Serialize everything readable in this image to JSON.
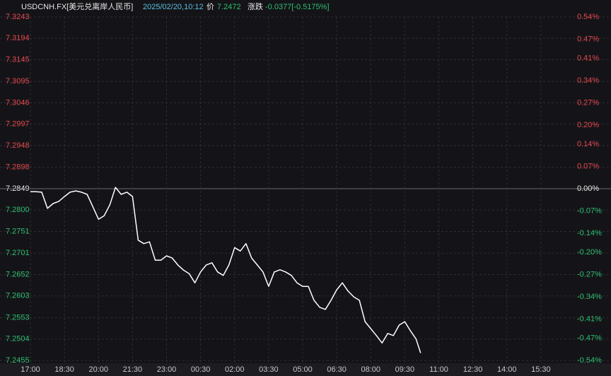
{
  "chart_data": {
    "type": "line",
    "title": "USDCNH.FX[美元兑离岸人民币]",
    "header": {
      "datetime": "2025/02/20,10:12",
      "price_label": "价",
      "price": "7.2472",
      "change_label": "涨跌",
      "change": "-0.0377[-0.5175%]"
    },
    "x": [
      "17:00",
      "17:15",
      "17:30",
      "17:45",
      "18:00",
      "18:15",
      "18:30",
      "18:45",
      "19:00",
      "19:15",
      "19:30",
      "19:45",
      "20:00",
      "20:15",
      "20:30",
      "20:45",
      "21:00",
      "21:15",
      "21:30",
      "21:45",
      "22:00",
      "22:15",
      "22:30",
      "22:45",
      "23:00",
      "23:15",
      "23:30",
      "23:45",
      "00:00",
      "00:15",
      "00:30",
      "00:45",
      "01:00",
      "01:15",
      "01:30",
      "01:45",
      "02:00",
      "02:15",
      "02:30",
      "02:45",
      "03:00",
      "03:15",
      "03:30",
      "03:45",
      "04:00",
      "04:15",
      "04:30",
      "04:45",
      "05:00",
      "05:15",
      "05:30",
      "05:45",
      "06:00",
      "06:15",
      "06:30",
      "06:45",
      "07:00",
      "07:15",
      "07:30",
      "07:45",
      "08:00",
      "08:15",
      "08:30",
      "08:45",
      "09:00",
      "09:15",
      "09:30",
      "09:45",
      "10:00",
      "10:12"
    ],
    "values": [
      7.2842,
      7.2842,
      7.2841,
      7.2804,
      7.2815,
      7.282,
      7.2831,
      7.2841,
      7.2844,
      7.2841,
      7.2836,
      7.2808,
      7.2779,
      7.2787,
      7.2812,
      7.2852,
      7.2836,
      7.2841,
      7.2831,
      7.2731,
      7.2723,
      7.2727,
      7.2685,
      7.2685,
      7.2695,
      7.269,
      7.2674,
      7.2662,
      7.2654,
      7.2633,
      7.2658,
      7.2674,
      7.2679,
      7.2658,
      7.265,
      7.2674,
      7.2714,
      7.2706,
      7.2723,
      7.269,
      7.2674,
      7.2658,
      7.2625,
      7.2658,
      7.2663,
      7.2658,
      7.265,
      7.2633,
      7.2625,
      7.2625,
      7.2593,
      7.2577,
      7.2572,
      7.2593,
      7.2617,
      7.2633,
      7.2614,
      7.2601,
      7.2593,
      7.2544,
      7.2528,
      7.2512,
      7.2495,
      7.2517,
      7.2512,
      7.2536,
      7.2544,
      7.2523,
      7.2504,
      7.2472
    ],
    "color": "#ffffff",
    "xlim": [
      "17:00",
      "17:00"
    ],
    "xticks": [
      "17:00",
      "18:30",
      "20:00",
      "21:30",
      "23:00",
      "00:30",
      "02:00",
      "03:30",
      "05:00",
      "06:30",
      "08:00",
      "09:30",
      "11:00",
      "12:30",
      "14:00",
      "15:30"
    ],
    "ylim": [
      7.2455,
      7.3243
    ],
    "yticks": [
      7.3243,
      7.3194,
      7.3145,
      7.3095,
      7.3046,
      7.2997,
      7.2948,
      7.2898,
      7.2849,
      {
        "value": 7.28,
        "label": "7.2800"
      },
      7.2751,
      7.2701,
      7.2652,
      7.2603,
      7.2553,
      7.2504,
      7.2455
    ],
    "y2lim": [
      -0.54,
      0.54
    ],
    "y2ticks": [
      {
        "value": 0.54,
        "label": "0.54%"
      },
      {
        "value": 0.47,
        "label": "0.47%"
      },
      {
        "value": 0.41,
        "label": "0.41%"
      },
      {
        "value": 0.34,
        "label": "0.34%"
      },
      {
        "value": 0.27,
        "label": "0.27%"
      },
      {
        "value": 0.2,
        "label": "0.20%"
      },
      {
        "value": 0.14,
        "label": "0.14%"
      },
      {
        "value": 0.07,
        "label": "0.07%"
      },
      {
        "value": 0,
        "label": "0.00%"
      },
      {
        "value": -0.07,
        "label": "-0.07%"
      },
      {
        "value": -0.14,
        "label": "-0.14%"
      },
      {
        "value": -0.2,
        "label": "-0.20%"
      },
      {
        "value": -0.27,
        "label": "-0.27%"
      },
      {
        "value": -0.34,
        "label": "-0.34%"
      },
      {
        "value": -0.41,
        "label": "-0.41%"
      },
      {
        "value": -0.47,
        "label": "-0.47%"
      },
      {
        "value": -0.54,
        "label": "-0.54%"
      }
    ],
    "baseline": 7.2849,
    "up_color": "#e5484d",
    "down_color": "#2fbf71",
    "flat_color": "#e6e6e6",
    "grid": true
  }
}
